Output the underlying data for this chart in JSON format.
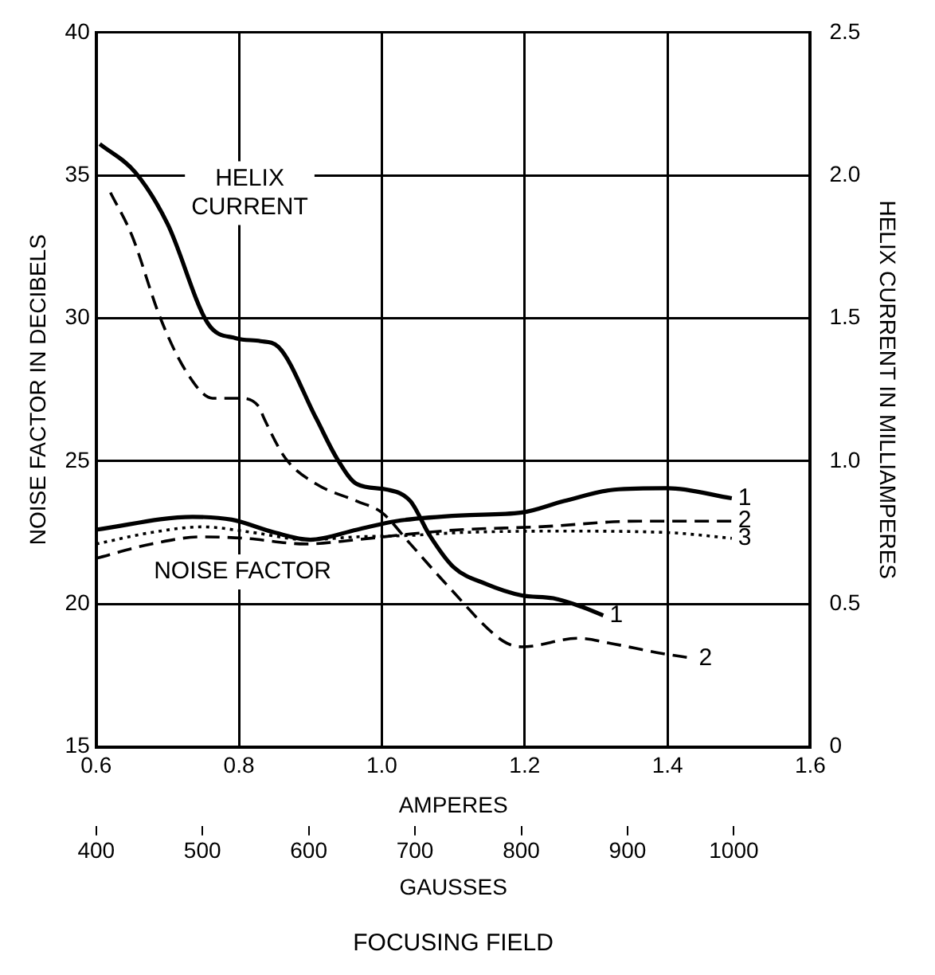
{
  "chart_data": {
    "type": "line",
    "xlabel": "AMPERES",
    "ylabel": "NOISE FACTOR IN DECIBELS",
    "y2label": "HELIX CURRENT IN MILLIAMPERES",
    "x2label": "GAUSSES",
    "xlim": [
      0.6,
      1.6
    ],
    "xticks": [
      0.6,
      0.8,
      {
        "value": 1,
        "label": "1.0"
      },
      1.2,
      1.4,
      1.6
    ],
    "x2lim": [
      400,
      1072
    ],
    "x2ticks": [
      400,
      500,
      600,
      700,
      800,
      900,
      1000
    ],
    "ylim": [
      15,
      40
    ],
    "yticks": [
      15,
      20,
      25,
      30,
      35,
      40
    ],
    "y2lim": [
      0,
      2.5
    ],
    "y2ticks": [
      0,
      0.5,
      {
        "value": 1,
        "label": "1.0"
      },
      1.5,
      {
        "value": 2,
        "label": "2.0"
      },
      2.5
    ],
    "grid": true,
    "legend": false,
    "marker": "none",
    "annotations": [
      "HELIX CURRENT",
      "NOISE FACTOR",
      "FOCUSING FIELD"
    ],
    "series": [
      {
        "name": "1",
        "color": "#000000",
        "axis": "y2",
        "line_style": "solid",
        "x": [
          0.605,
          0.655,
          0.7,
          0.757,
          0.796,
          0.83,
          0.855,
          0.908,
          0.937,
          0.965,
          1.008,
          1.04,
          1.067,
          1.1,
          1.146,
          1.196,
          1.24,
          1.28,
          1.31
        ],
        "values": [
          2.11,
          2.01,
          1.83,
          1.48,
          1.43,
          1.42,
          1.4,
          1.15,
          1.01,
          0.92,
          0.9,
          0.86,
          0.74,
          0.63,
          0.57,
          0.53,
          0.52,
          0.49,
          0.46
        ]
      },
      {
        "name": "2",
        "color": "#000000",
        "axis": "y2",
        "line_style": "dashed",
        "x": [
          0.62,
          0.65,
          0.69,
          0.727,
          0.763,
          0.8,
          0.828,
          0.835,
          0.865,
          0.908,
          0.965,
          1.0,
          1.04,
          1.09,
          1.17,
          1.196,
          1.275,
          1.325,
          1.385,
          1.435
        ],
        "values": [
          1.94,
          1.79,
          1.5,
          1.31,
          1.22,
          1.22,
          1.19,
          1.15,
          1.01,
          0.92,
          0.86,
          0.82,
          0.71,
          0.57,
          0.37,
          0.35,
          0.38,
          0.36,
          0.33,
          0.31
        ]
      },
      {
        "name": "1",
        "color": "#000000",
        "line_style": "solid",
        "x": [
          0.6,
          0.735,
          0.79,
          0.85,
          0.9,
          0.965,
          1.02,
          1.11,
          1.196,
          1.255,
          1.325,
          1.4,
          1.49
        ],
        "values": [
          22.6,
          23.05,
          22.95,
          22.5,
          22.25,
          22.6,
          22.9,
          23.1,
          23.2,
          23.6,
          24.0,
          24.05,
          23.7
        ]
      },
      {
        "name": "2",
        "color": "#000000",
        "line_style": "dashed",
        "x": [
          0.6,
          0.677,
          0.748,
          0.807,
          0.893,
          0.965,
          1.04,
          1.11,
          1.22,
          1.36,
          1.49
        ],
        "values": [
          21.6,
          22.1,
          22.35,
          22.3,
          22.1,
          22.25,
          22.45,
          22.6,
          22.7,
          22.9,
          22.9
        ]
      },
      {
        "name": "3",
        "color": "#000000",
        "line_style": "dotted",
        "x": [
          0.6,
          0.677,
          0.748,
          0.82,
          0.893,
          0.965,
          1.04,
          1.11,
          1.255,
          1.4,
          1.49
        ],
        "values": [
          22.1,
          22.5,
          22.7,
          22.5,
          22.25,
          22.35,
          22.4,
          22.5,
          22.55,
          22.5,
          22.3
        ]
      }
    ]
  }
}
